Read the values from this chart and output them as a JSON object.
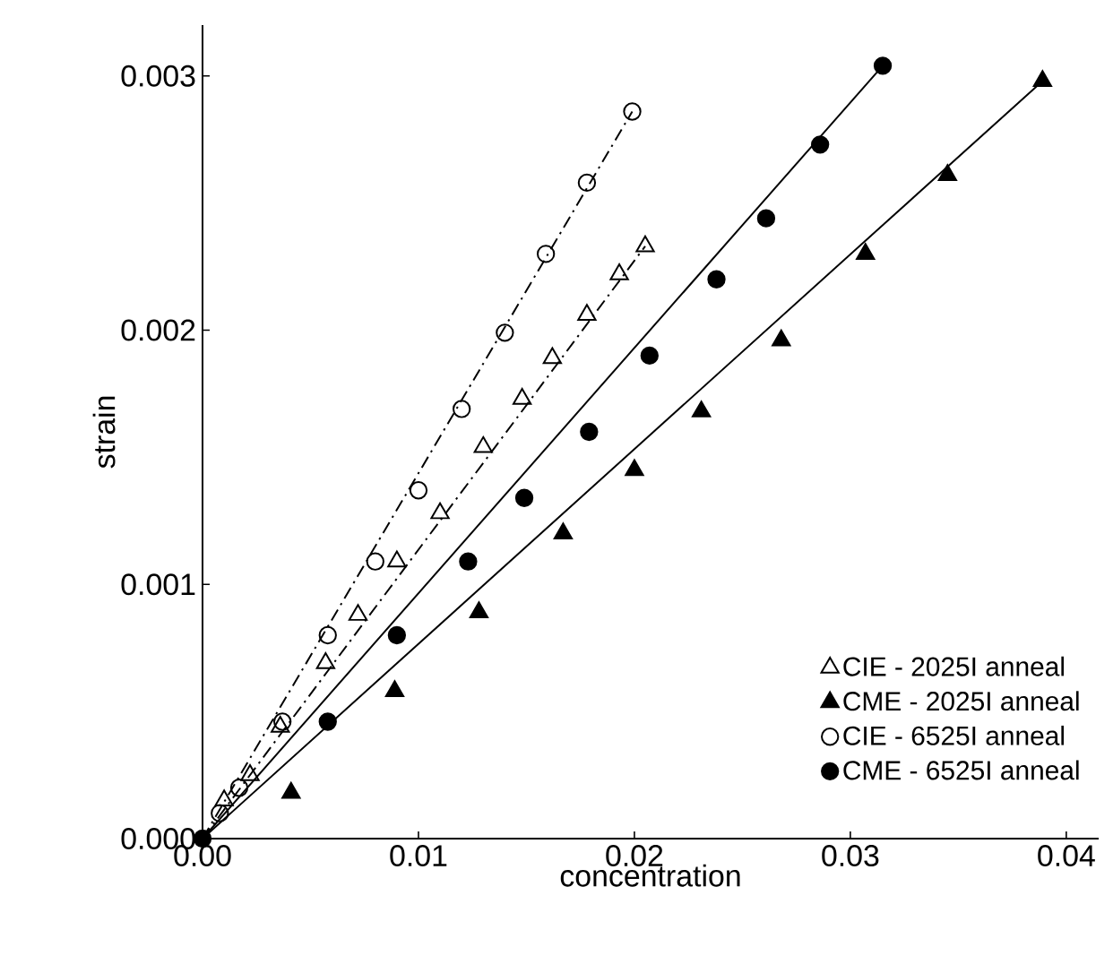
{
  "chart_data": {
    "type": "scatter",
    "xlabel": "concentration",
    "ylabel": "strain",
    "xlim": [
      0,
      0.0415
    ],
    "ylim": [
      0,
      0.0032
    ],
    "xticks": [
      {
        "value": 0,
        "label": "0.00"
      },
      {
        "value": 0.01,
        "label": "0.01"
      },
      {
        "value": 0.02,
        "label": "0.02"
      },
      {
        "value": 0.03,
        "label": "0.03"
      },
      {
        "value": 0.04,
        "label": "0.04"
      }
    ],
    "yticks": [
      {
        "value": 0,
        "label": "0.000"
      },
      {
        "value": 0.001,
        "label": "0.001"
      },
      {
        "value": 0.002,
        "label": "0.002"
      },
      {
        "value": 0.003,
        "label": "0.003"
      }
    ],
    "legend": "bottom right",
    "series": [
      {
        "type": "line",
        "line_style": "dashdot",
        "color": "#000000",
        "x": [
          0,
          0.0205
        ],
        "values": [
          0,
          0.00233
        ]
      },
      {
        "type": "line",
        "line_style": "solid",
        "color": "#000000",
        "x": [
          0,
          0.0389
        ],
        "values": [
          0,
          0.00298
        ]
      },
      {
        "type": "line",
        "line_style": "dashdot",
        "color": "#000000",
        "x": [
          0,
          0.0199
        ],
        "values": [
          0,
          0.00286
        ]
      },
      {
        "type": "line",
        "line_style": "solid",
        "color": "#000000",
        "x": [
          0,
          0.0315
        ],
        "values": [
          0,
          0.00304
        ]
      },
      {
        "name": "CIE - 2025I anneal",
        "marker": "triangle",
        "color": "#000000",
        "x": [
          0.001,
          0.0022,
          0.0036,
          0.0057,
          0.0072,
          0.009,
          0.011,
          0.013,
          0.0148,
          0.0162,
          0.0178,
          0.0193,
          0.0205
        ],
        "values": [
          0.00015,
          0.00025,
          0.00044,
          0.00069,
          0.00088,
          0.00109,
          0.00128,
          0.00154,
          0.00173,
          0.00189,
          0.00206,
          0.00222,
          0.00233
        ]
      },
      {
        "name": "CME - 2025I anneal",
        "marker": "triangle",
        "color": "#000000",
        "x": [
          0.0041,
          0.0089,
          0.0128,
          0.0167,
          0.02,
          0.0231,
          0.0268,
          0.0307,
          0.0345,
          0.0389
        ],
        "values": [
          0.00018,
          0.00058,
          0.00089,
          0.0012,
          0.00145,
          0.00168,
          0.00196,
          0.0023,
          0.00261,
          0.00298
        ]
      },
      {
        "name": "CIE - 6525I anneal",
        "marker": "circle",
        "color": "#000000",
        "x": [
          0.0008,
          0.0017,
          0.0037,
          0.0058,
          0.008,
          0.01,
          0.012,
          0.014,
          0.0159,
          0.0178,
          0.0199
        ],
        "values": [
          0.0001,
          0.0002,
          0.00046,
          0.0008,
          0.00109,
          0.00137,
          0.00169,
          0.00199,
          0.0023,
          0.00258,
          0.00286
        ]
      },
      {
        "name": "CME - 6525I anneal",
        "marker": "circle",
        "color": "#000000",
        "x": [
          0,
          0.0058,
          0.009,
          0.0123,
          0.0149,
          0.0179,
          0.0207,
          0.0238,
          0.0261,
          0.0286,
          0.0315
        ],
        "values": [
          0,
          0.00046,
          0.0008,
          0.00109,
          0.00134,
          0.0016,
          0.0019,
          0.0022,
          0.00244,
          0.00273,
          0.00304
        ]
      }
    ]
  }
}
